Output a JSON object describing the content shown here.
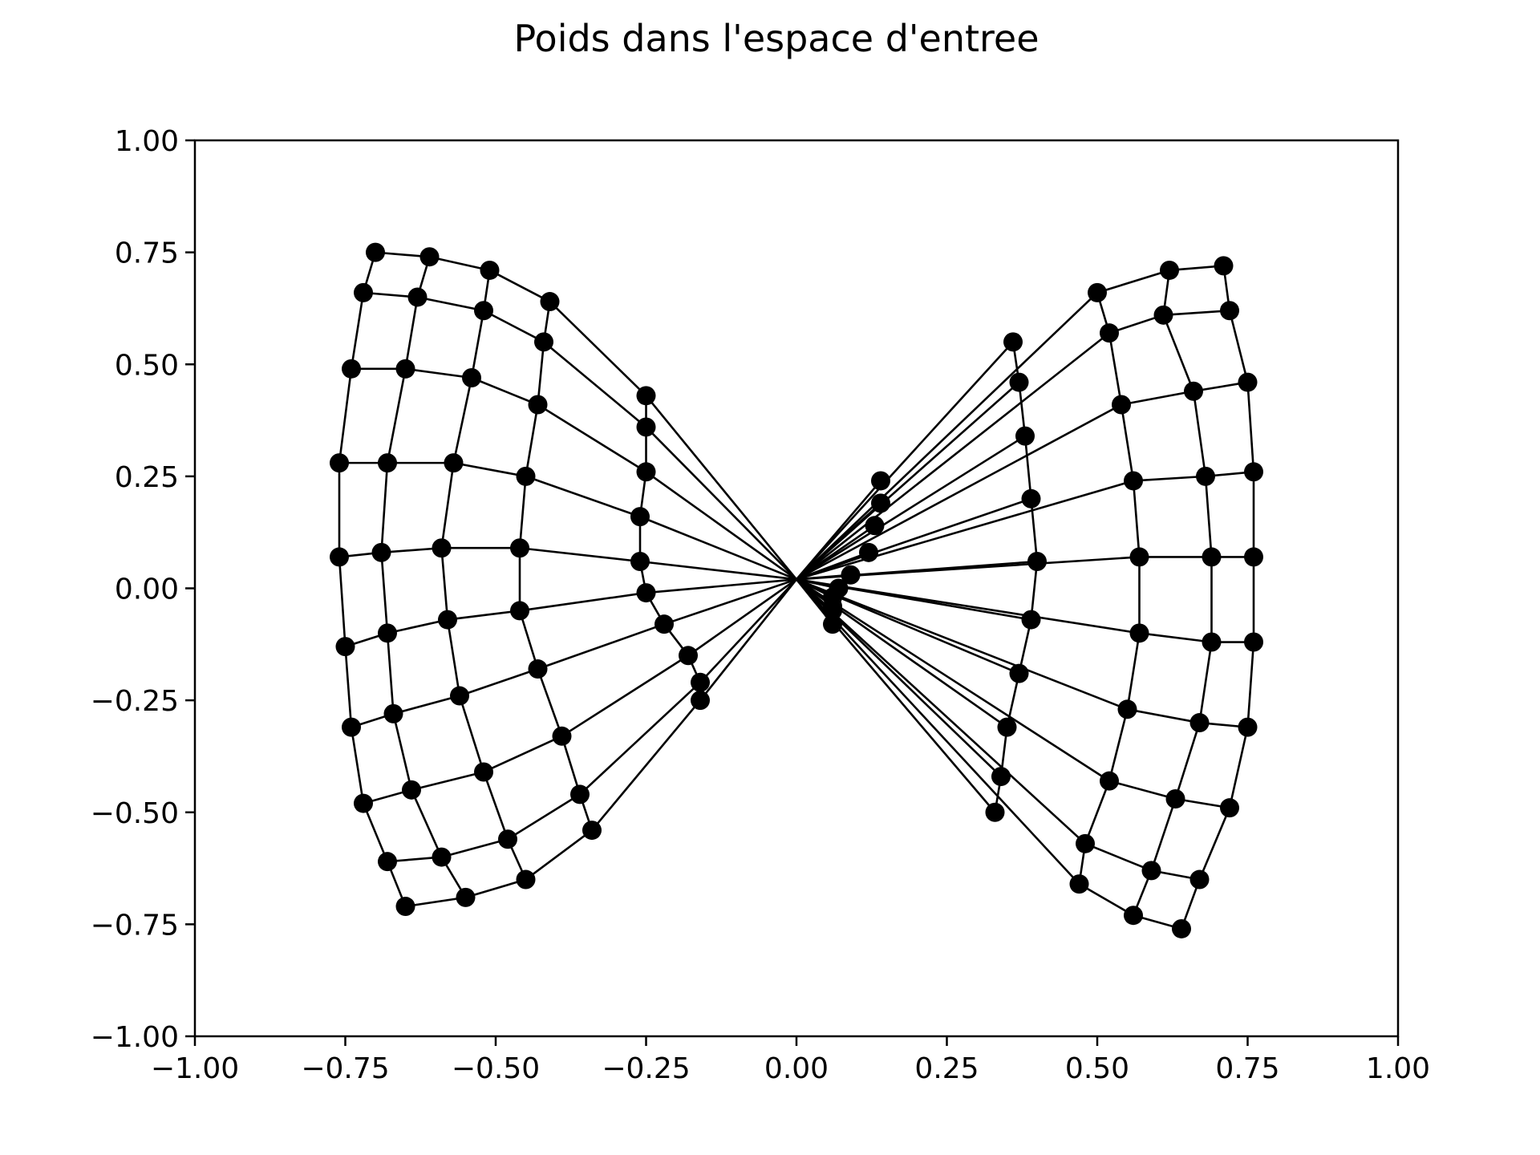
{
  "chart_data": {
    "type": "scatter",
    "title": "Poids dans l'espace d'entree",
    "xlabel": "",
    "ylabel": "",
    "xlim": [
      -1.0,
      1.0
    ],
    "ylim": [
      -1.0,
      1.0
    ],
    "grid": false,
    "xticks": [
      -1.0,
      -0.75,
      -0.5,
      -0.25,
      0.0,
      0.25,
      0.5,
      0.75,
      1.0
    ],
    "yticks": [
      -1.0,
      -0.75,
      -0.5,
      -0.25,
      0.0,
      0.25,
      0.5,
      0.75,
      1.0
    ],
    "xtick_labels": [
      "−1.00",
      "−0.75",
      "−0.50",
      "−0.25",
      "0.00",
      "0.25",
      "0.50",
      "0.75",
      "1.00"
    ],
    "ytick_labels": [
      "−1.00",
      "−0.75",
      "−0.50",
      "−0.25",
      "0.00",
      "0.25",
      "0.50",
      "0.75",
      "1.00"
    ],
    "marker_color": "#000000",
    "line_color": "#000000",
    "grid_rows": [
      [
        [
          -0.7,
          0.75
        ],
        [
          -0.61,
          0.74
        ],
        [
          -0.51,
          0.71
        ],
        [
          -0.41,
          0.64
        ],
        [
          -0.25,
          0.43
        ],
        [
          0.14,
          0.24
        ],
        [
          0.5,
          0.66
        ],
        [
          0.62,
          0.71
        ],
        [
          0.71,
          0.72
        ]
      ],
      [
        [
          -0.72,
          0.66
        ],
        [
          -0.63,
          0.65
        ],
        [
          -0.52,
          0.62
        ],
        [
          -0.42,
          0.55
        ],
        [
          -0.25,
          0.36
        ],
        [
          0.14,
          0.19
        ],
        [
          0.52,
          0.57
        ],
        [
          0.61,
          0.61
        ],
        [
          0.72,
          0.62
        ]
      ],
      [
        [
          -0.74,
          0.49
        ],
        [
          -0.65,
          0.49
        ],
        [
          -0.54,
          0.47
        ],
        [
          -0.43,
          0.41
        ],
        [
          -0.25,
          0.26
        ],
        [
          0.13,
          0.14
        ],
        [
          0.54,
          0.41
        ],
        [
          0.66,
          0.44
        ],
        [
          0.75,
          0.46
        ]
      ],
      [
        [
          -0.76,
          0.28
        ],
        [
          -0.68,
          0.28
        ],
        [
          -0.57,
          0.28
        ],
        [
          -0.45,
          0.25
        ],
        [
          -0.26,
          0.16
        ],
        [
          0.12,
          0.08
        ],
        [
          0.56,
          0.24
        ],
        [
          0.68,
          0.25
        ],
        [
          0.76,
          0.26
        ]
      ],
      [
        [
          -0.76,
          0.07
        ],
        [
          -0.69,
          0.08
        ],
        [
          -0.59,
          0.09
        ],
        [
          -0.46,
          0.09
        ],
        [
          -0.26,
          0.06
        ],
        [
          0.09,
          0.03
        ],
        [
          0.57,
          0.07
        ],
        [
          0.69,
          0.07
        ],
        [
          0.76,
          0.07
        ]
      ],
      [
        [
          -0.75,
          -0.13
        ],
        [
          -0.68,
          -0.1
        ],
        [
          -0.58,
          -0.07
        ],
        [
          -0.46,
          -0.05
        ],
        [
          -0.25,
          -0.01
        ],
        [
          0.07,
          0.0
        ],
        [
          0.57,
          -0.1
        ],
        [
          0.69,
          -0.12
        ],
        [
          0.76,
          -0.12
        ]
      ],
      [
        [
          -0.74,
          -0.31
        ],
        [
          -0.67,
          -0.28
        ],
        [
          -0.56,
          -0.24
        ],
        [
          -0.43,
          -0.18
        ],
        [
          -0.22,
          -0.08
        ],
        [
          0.06,
          -0.02
        ],
        [
          0.55,
          -0.27
        ],
        [
          0.67,
          -0.3
        ],
        [
          0.75,
          -0.31
        ]
      ],
      [
        [
          -0.72,
          -0.48
        ],
        [
          -0.64,
          -0.45
        ],
        [
          -0.52,
          -0.41
        ],
        [
          -0.39,
          -0.33
        ],
        [
          -0.18,
          -0.15
        ],
        [
          0.06,
          -0.04
        ],
        [
          0.52,
          -0.43
        ],
        [
          0.63,
          -0.47
        ],
        [
          0.72,
          -0.49
        ]
      ],
      [
        [
          -0.68,
          -0.61
        ],
        [
          -0.59,
          -0.6
        ],
        [
          -0.48,
          -0.56
        ],
        [
          -0.36,
          -0.46
        ],
        [
          -0.16,
          -0.21
        ],
        [
          0.06,
          -0.05
        ],
        [
          0.48,
          -0.57
        ],
        [
          0.59,
          -0.63
        ],
        [
          0.67,
          -0.65
        ]
      ],
      [
        [
          -0.65,
          -0.71
        ],
        [
          -0.55,
          -0.69
        ],
        [
          -0.45,
          -0.65
        ],
        [
          -0.34,
          -0.54
        ],
        [
          -0.16,
          -0.25
        ],
        [
          0.06,
          -0.08
        ],
        [
          0.47,
          -0.66
        ],
        [
          0.56,
          -0.73
        ],
        [
          0.64,
          -0.76
        ]
      ]
    ],
    "extra_points": [
      [
        0.33,
        -0.5
      ],
      [
        0.34,
        -0.42
      ],
      [
        0.35,
        -0.31
      ],
      [
        0.37,
        -0.19
      ],
      [
        0.39,
        -0.07
      ],
      [
        0.4,
        0.06
      ],
      [
        0.39,
        0.2
      ],
      [
        0.38,
        0.34
      ],
      [
        0.37,
        0.46
      ],
      [
        0.36,
        0.55
      ]
    ]
  }
}
